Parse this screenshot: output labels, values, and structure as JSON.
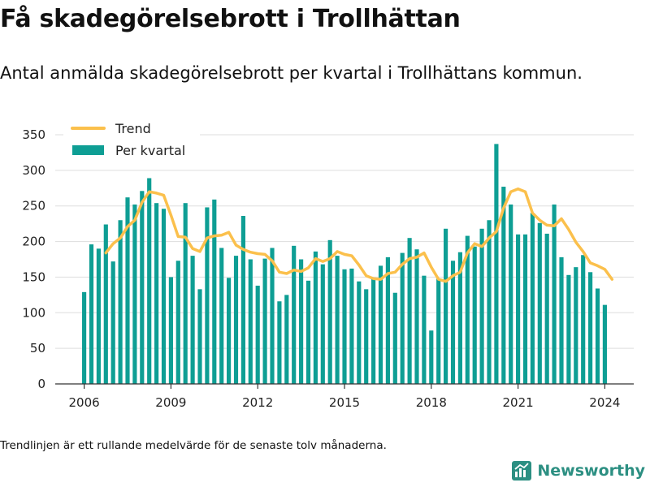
{
  "title": "Få skadegörelsebrott i Trollhättan",
  "subtitle": "Antal anmälda skadegörelsebrott per kvartal i Trollhättans kommun.",
  "footnote": "Trendlinjen är ett rullande medelvärde för de senaste tolv månaderna.",
  "brand": {
    "name": "Newsworthy",
    "color": "#2c8f82"
  },
  "colors": {
    "bars": "#0e9e94",
    "trend": "#fbc04c",
    "grid": "#dddddd",
    "axis": "#333333"
  },
  "chart_data": {
    "type": "bar",
    "x_unit": "quarter",
    "first_quarter": "2006 Q1",
    "yticks": [
      0,
      50,
      100,
      150,
      200,
      250,
      300,
      350
    ],
    "ylim": [
      0,
      370
    ],
    "xticks": [
      2006,
      2009,
      2012,
      2015,
      2018,
      2021,
      2024
    ],
    "xlim": [
      2005.0,
      2025.0
    ],
    "grid": true,
    "legend_position": "top-left",
    "series": [
      {
        "name": "Trend",
        "type": "line",
        "start_quarter": "2006 Q4",
        "values": [
          184,
          197,
          205,
          221,
          230,
          255,
          270,
          268,
          265,
          237,
          207,
          206,
          190,
          186,
          205,
          208,
          209,
          213,
          195,
          189,
          185,
          183,
          182,
          173,
          157,
          155,
          160,
          158,
          163,
          176,
          172,
          176,
          186,
          182,
          180,
          167,
          152,
          148,
          147,
          155,
          157,
          168,
          176,
          178,
          184,
          164,
          147,
          144,
          152,
          157,
          184,
          197,
          193,
          205,
          214,
          247,
          270,
          274,
          270,
          240,
          230,
          223,
          222,
          232,
          217,
          199,
          186,
          170,
          166,
          161,
          147
        ]
      },
      {
        "name": "Per kvartal",
        "type": "bar",
        "start_quarter": "2006 Q1",
        "values": [
          129,
          196,
          190,
          224,
          172,
          230,
          262,
          252,
          271,
          289,
          254,
          246,
          150,
          173,
          254,
          180,
          133,
          248,
          259,
          191,
          149,
          180,
          236,
          175,
          138,
          176,
          191,
          116,
          125,
          194,
          175,
          145,
          186,
          168,
          202,
          180,
          161,
          162,
          144,
          133,
          148,
          166,
          178,
          128,
          184,
          205,
          189,
          152,
          75,
          148,
          218,
          173,
          185,
          208,
          193,
          218,
          230,
          337,
          277,
          252,
          210,
          210,
          240,
          226,
          211,
          252,
          178,
          153,
          164,
          181,
          157,
          134,
          111
        ]
      }
    ]
  }
}
